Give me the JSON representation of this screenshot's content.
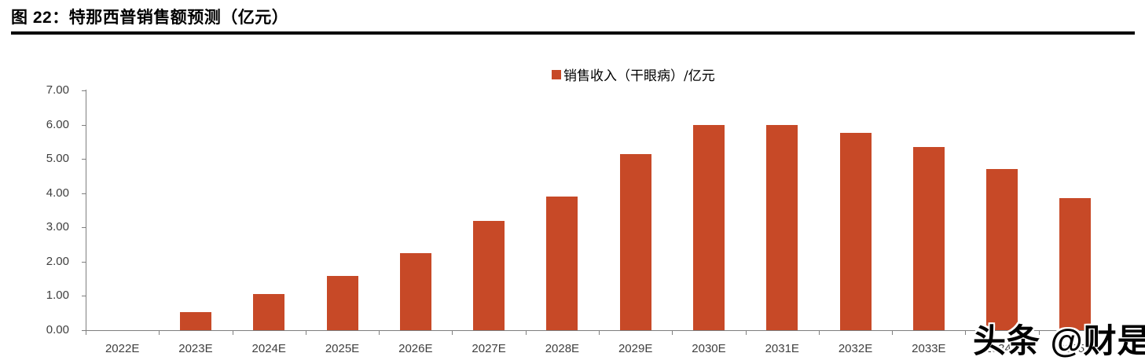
{
  "header": {
    "title": "图 22：特那西普销售额预测（亿元）"
  },
  "legend": {
    "label": "销售收入（干眼病）/亿元",
    "marker_color": "#C74927"
  },
  "watermark": {
    "text": "头条 @财是"
  },
  "colors": {
    "bar": "#C74927",
    "axis": "#7f7f7f",
    "tick_label": "#3f3f3f",
    "title": "#000000",
    "background": "#ffffff"
  },
  "chart_data": {
    "type": "bar",
    "title": "特那西普销售额预测（亿元）",
    "categories": [
      "2022E",
      "2023E",
      "2024E",
      "2025E",
      "2026E",
      "2027E",
      "2028E",
      "2029E",
      "2030E",
      "2031E",
      "2032E",
      "2033E",
      "2034E",
      "2035E"
    ],
    "values": [
      0.0,
      0.53,
      1.05,
      1.59,
      2.25,
      3.18,
      3.9,
      5.15,
      6.0,
      5.98,
      5.77,
      5.35,
      4.7,
      3.86
    ],
    "series_name": "销售收入（干眼病）/亿元",
    "xlabel": "",
    "ylabel": "",
    "ylim": [
      0,
      7
    ],
    "ytick_step": 1,
    "ytick_labels": [
      "0.00",
      "1.00",
      "2.00",
      "3.00",
      "4.00",
      "5.00",
      "6.00",
      "7.00"
    ],
    "grid": false,
    "legend_position": "top-center",
    "bar_color": "#C74927"
  }
}
